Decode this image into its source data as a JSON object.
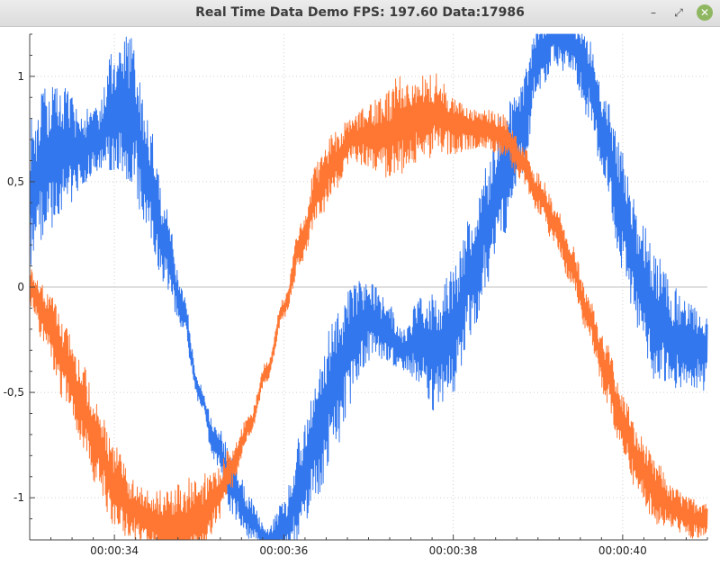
{
  "window": {
    "title": "Real Time Data Demo FPS: 197.60 Data:17986",
    "minimize_glyph": "–",
    "maximize_glyph": "⤢",
    "close_glyph": "✕",
    "close_color": "#8fb761"
  },
  "chart_data": {
    "type": "line",
    "title": "",
    "xlabel": "",
    "ylabel": "",
    "xlim": [
      33.0,
      41.0
    ],
    "ylim": [
      -1.2,
      1.2
    ],
    "x_tick_values": [
      34,
      36,
      38,
      40
    ],
    "x_tick_labels": [
      "00:00:34",
      "00:00:36",
      "00:00:38",
      "00:00:40"
    ],
    "y_tick_values": [
      1,
      0.5,
      0,
      -0.5,
      -1
    ],
    "y_tick_labels": [
      "1",
      "0,5",
      "0",
      "-0,5",
      "-1"
    ],
    "grid": true,
    "legend": "none",
    "series": [
      {
        "color": "#3377ee",
        "x": [
          33.0,
          33.2,
          33.4,
          33.6,
          33.8,
          34.0,
          34.2,
          34.4,
          34.6,
          34.8,
          35.0,
          35.2,
          35.4,
          35.6,
          35.8,
          36.0,
          36.2,
          36.4,
          36.6,
          36.8,
          37.0,
          37.2,
          37.4,
          37.6,
          37.8,
          38.0,
          38.2,
          38.4,
          38.6,
          38.8,
          39.0,
          39.2,
          39.4,
          39.6,
          39.8,
          40.0,
          40.2,
          40.4,
          40.6,
          40.8,
          41.0
        ],
        "y": [
          0.45,
          0.6,
          0.65,
          0.65,
          0.7,
          0.85,
          0.85,
          0.5,
          0.2,
          -0.1,
          -0.5,
          -0.75,
          -0.95,
          -1.1,
          -1.2,
          -1.15,
          -0.95,
          -0.7,
          -0.45,
          -0.25,
          -0.15,
          -0.2,
          -0.3,
          -0.25,
          -0.3,
          -0.2,
          0.05,
          0.3,
          0.55,
          0.75,
          1.1,
          1.2,
          1.15,
          1.0,
          0.7,
          0.35,
          0.05,
          -0.15,
          -0.25,
          -0.28,
          -0.3
        ],
        "amplitude": [
          0.35,
          0.35,
          0.3,
          0.2,
          0.15,
          0.3,
          0.35,
          0.3,
          0.2,
          0.1,
          0.05,
          0.1,
          0.15,
          0.1,
          0.05,
          0.15,
          0.25,
          0.3,
          0.35,
          0.3,
          0.2,
          0.15,
          0.1,
          0.2,
          0.3,
          0.3,
          0.3,
          0.3,
          0.3,
          0.25,
          0.2,
          0.15,
          0.15,
          0.2,
          0.25,
          0.3,
          0.3,
          0.3,
          0.25,
          0.2,
          0.2
        ]
      },
      {
        "color": "#ff7733",
        "x": [
          33.0,
          33.2,
          33.4,
          33.6,
          33.8,
          34.0,
          34.2,
          34.4,
          34.6,
          34.8,
          35.0,
          35.2,
          35.4,
          35.6,
          35.8,
          36.0,
          36.2,
          36.4,
          36.6,
          36.8,
          37.0,
          37.2,
          37.4,
          37.6,
          37.8,
          38.0,
          38.2,
          38.4,
          38.6,
          38.8,
          39.0,
          39.2,
          39.4,
          39.6,
          39.8,
          40.0,
          40.2,
          40.4,
          40.6,
          40.8,
          41.0
        ],
        "y": [
          0.0,
          -0.15,
          -0.35,
          -0.55,
          -0.75,
          -0.95,
          -1.05,
          -1.1,
          -1.15,
          -1.15,
          -1.1,
          -1.0,
          -0.85,
          -0.65,
          -0.4,
          -0.1,
          0.2,
          0.45,
          0.6,
          0.7,
          0.72,
          0.72,
          0.78,
          0.8,
          0.82,
          0.78,
          0.75,
          0.75,
          0.72,
          0.6,
          0.45,
          0.3,
          0.1,
          -0.15,
          -0.4,
          -0.65,
          -0.85,
          -0.98,
          -1.05,
          -1.1,
          -1.1
        ],
        "amplitude": [
          0.1,
          0.15,
          0.2,
          0.2,
          0.2,
          0.2,
          0.15,
          0.15,
          0.2,
          0.25,
          0.2,
          0.15,
          0.1,
          0.05,
          0.05,
          0.05,
          0.1,
          0.15,
          0.15,
          0.1,
          0.15,
          0.2,
          0.25,
          0.2,
          0.2,
          0.15,
          0.1,
          0.1,
          0.1,
          0.1,
          0.1,
          0.1,
          0.1,
          0.1,
          0.15,
          0.15,
          0.15,
          0.15,
          0.1,
          0.1,
          0.1
        ]
      }
    ]
  }
}
